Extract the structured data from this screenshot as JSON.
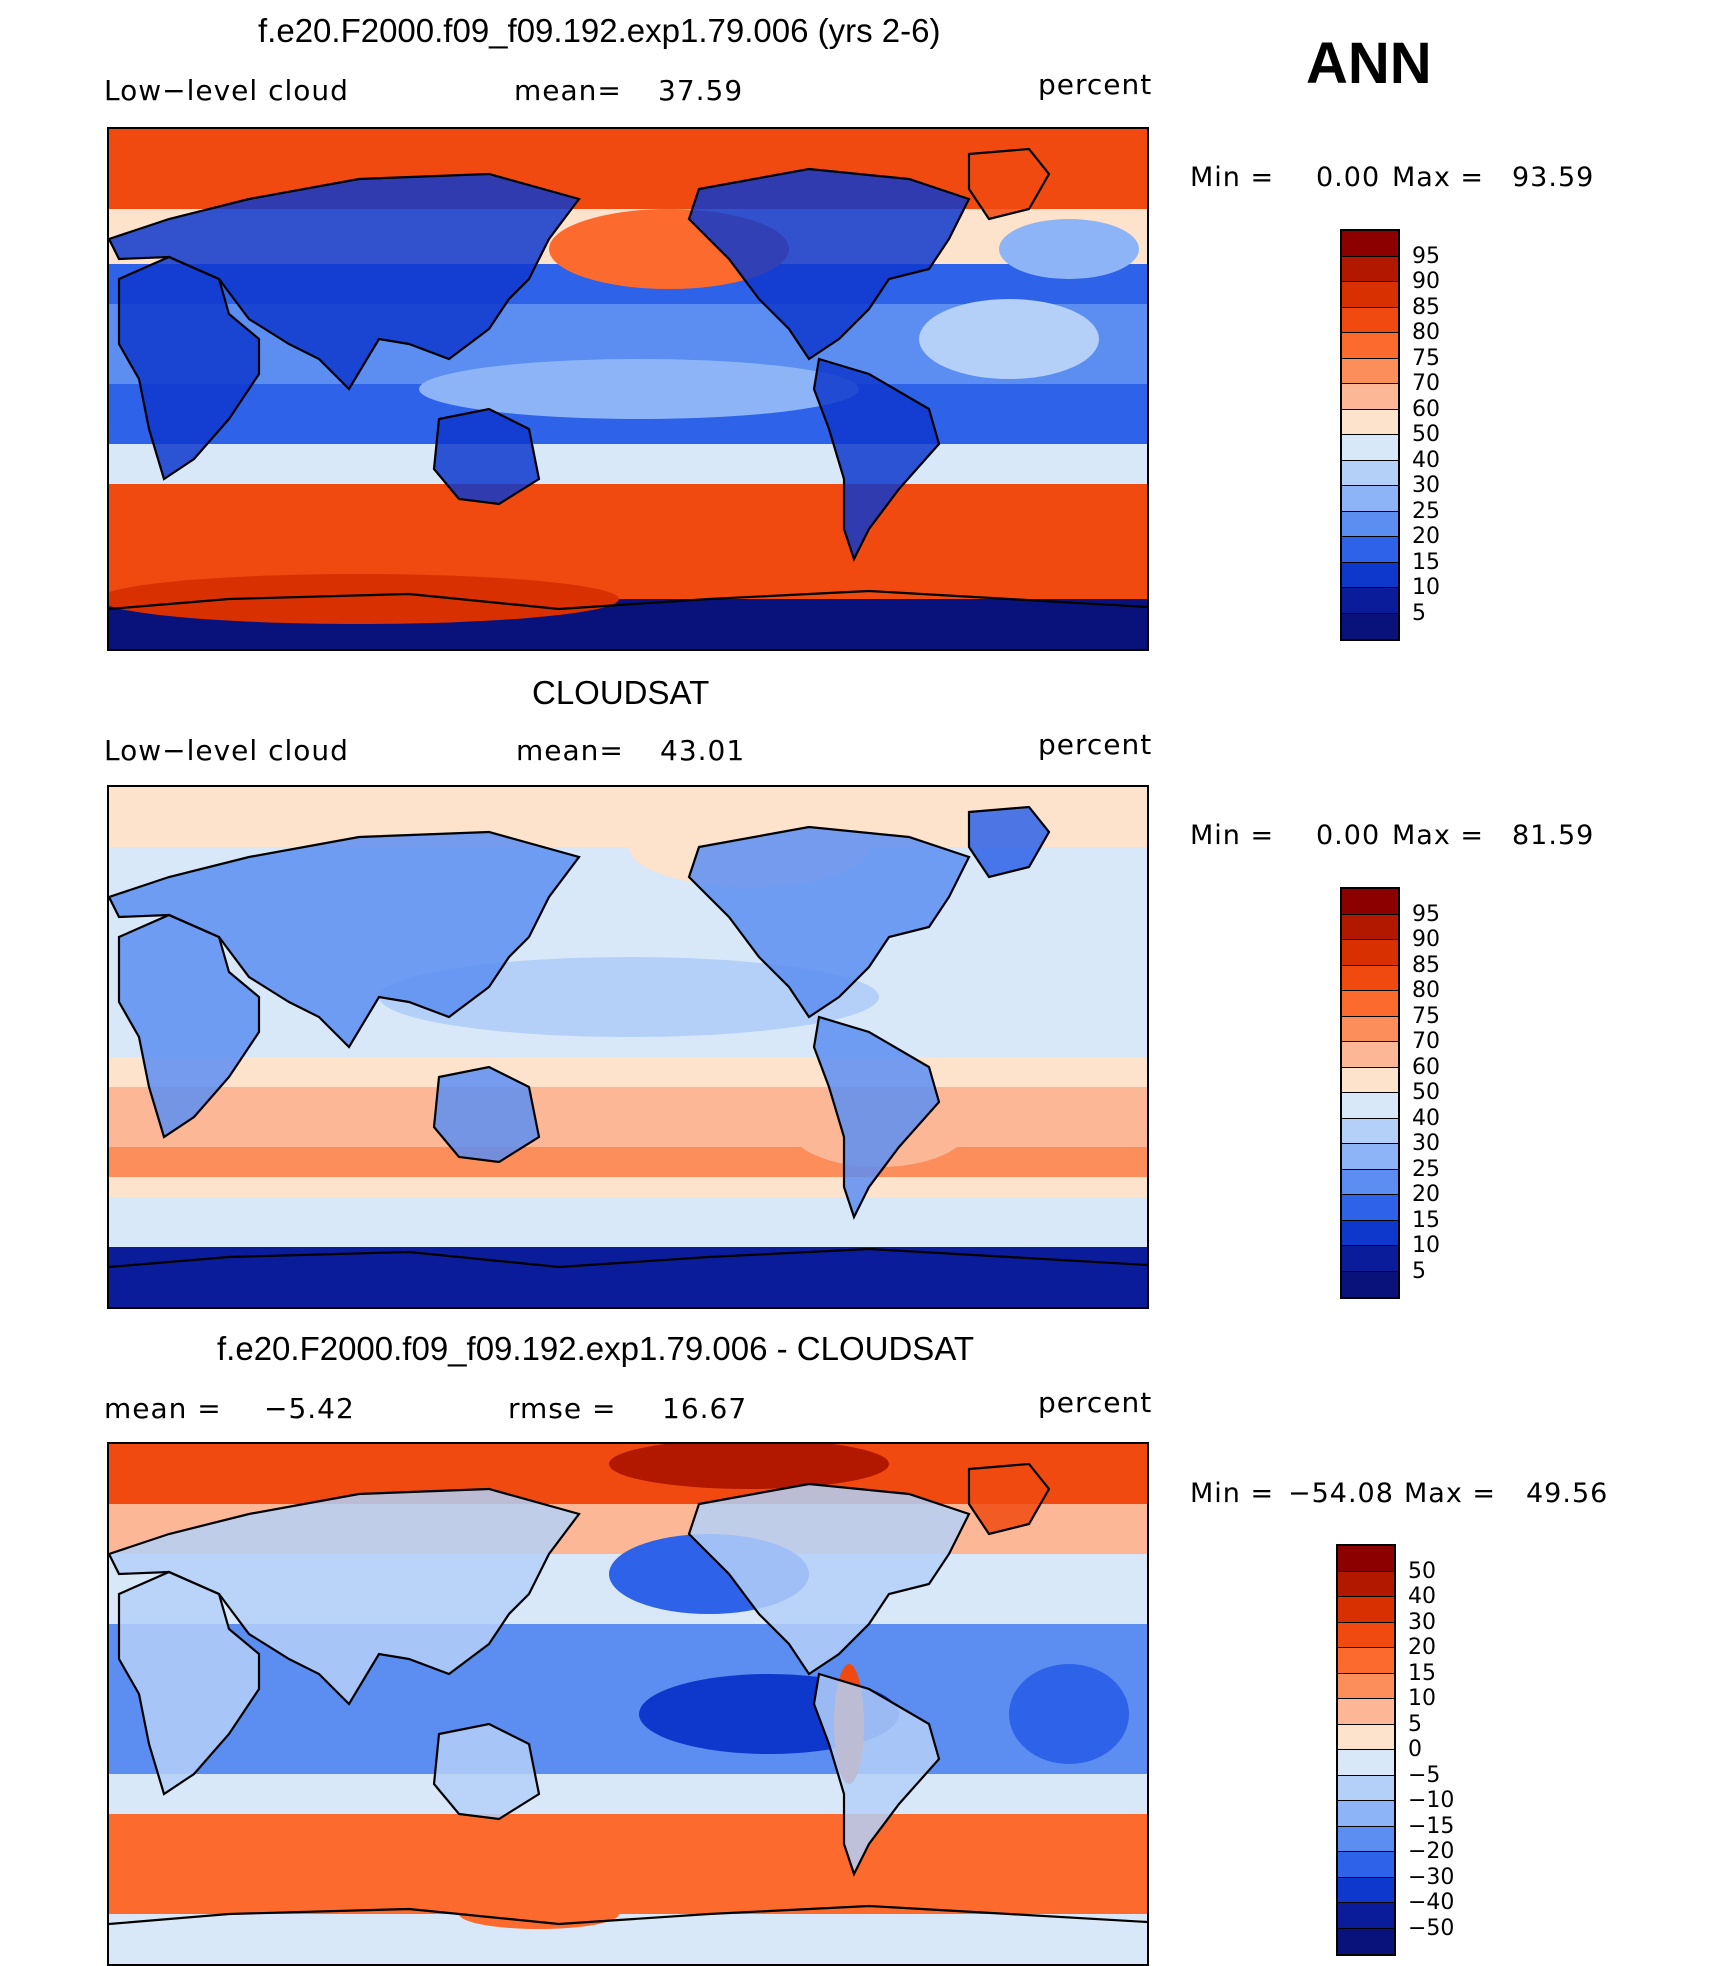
{
  "season": "ANN",
  "panels": [
    {
      "title": "f.e20.F2000.f09_f09.192.exp1.79.006 (yrs 2-6)",
      "left_label": "Low−level cloud",
      "center_label": "mean=",
      "center_value": "37.59",
      "units": "percent",
      "min_label": "Min =",
      "min_value": "0.00",
      "max_label": "Max =",
      "max_value": "93.59",
      "palette": "abs_model",
      "colorbar": {
        "ticks": [
          "95",
          "90",
          "85",
          "80",
          "75",
          "70",
          "60",
          "50",
          "40",
          "30",
          "25",
          "20",
          "15",
          "10",
          "5"
        ],
        "colors": [
          "#8c0000",
          "#b21800",
          "#d83000",
          "#f04a10",
          "#fc6a2e",
          "#fc8e5c",
          "#fcb896",
          "#fde2cc",
          "#d8e8f8",
          "#b4d0f8",
          "#8cb4f6",
          "#5c8ef2",
          "#2e62e8",
          "#0e38cc",
          "#0a1c9a",
          "#08127a"
        ]
      }
    },
    {
      "title": "CLOUDSAT",
      "left_label": "Low−level cloud",
      "center_label": "mean=",
      "center_value": "43.01",
      "units": "percent",
      "min_label": "Min =",
      "min_value": "0.00",
      "max_label": "Max =",
      "max_value": "81.59",
      "palette": "abs_obs",
      "colorbar": {
        "ticks": [
          "95",
          "90",
          "85",
          "80",
          "75",
          "70",
          "60",
          "50",
          "40",
          "30",
          "25",
          "20",
          "15",
          "10",
          "5"
        ],
        "colors": [
          "#8c0000",
          "#b21800",
          "#d83000",
          "#f04a10",
          "#fc6a2e",
          "#fc8e5c",
          "#fcb896",
          "#fde2cc",
          "#d8e8f8",
          "#b4d0f8",
          "#8cb4f6",
          "#5c8ef2",
          "#2e62e8",
          "#0e38cc",
          "#0a1c9a",
          "#08127a"
        ]
      }
    },
    {
      "title": "f.e20.F2000.f09_f09.192.exp1.79.006 - CLOUDSAT",
      "left_label": "mean =",
      "left_value": "−5.42",
      "center_label": "rmse =",
      "center_value": "16.67",
      "units": "percent",
      "min_label": "Min =",
      "min_value": "−54.08",
      "max_label": "Max =",
      "max_value": "49.56",
      "palette": "diff",
      "colorbar": {
        "ticks": [
          "50",
          "40",
          "30",
          "20",
          "15",
          "10",
          "5",
          "0",
          "−5",
          "−10",
          "−15",
          "−20",
          "−30",
          "−40",
          "−50"
        ],
        "colors": [
          "#8c0000",
          "#b21800",
          "#d83000",
          "#f04a10",
          "#fc6a2e",
          "#fc8e5c",
          "#fcb896",
          "#fde2cc",
          "#d8e8f8",
          "#b4d0f8",
          "#8cb4f6",
          "#5c8ef2",
          "#2e62e8",
          "#0e38cc",
          "#0a1c9a",
          "#08127a"
        ]
      }
    }
  ]
}
